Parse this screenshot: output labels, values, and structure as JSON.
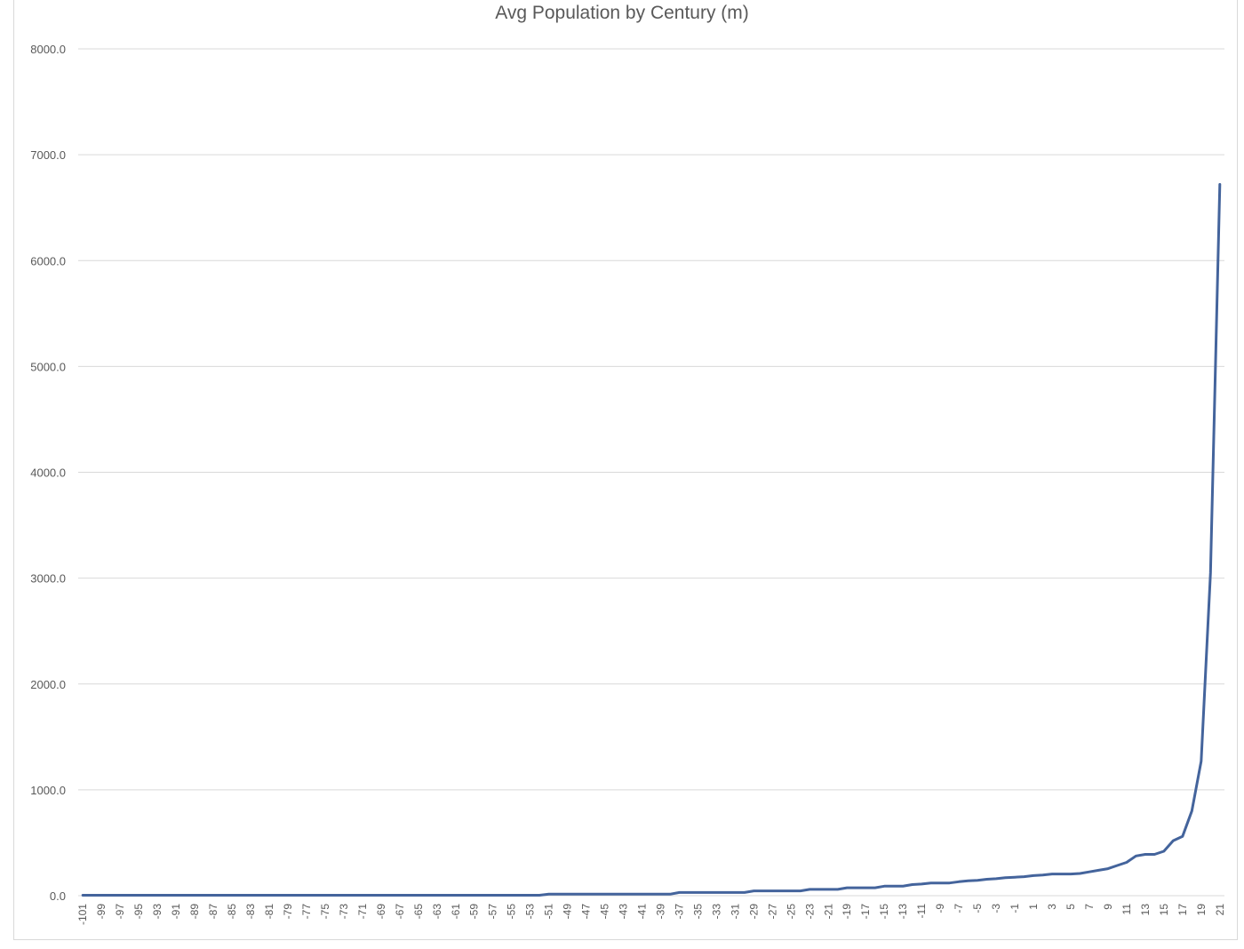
{
  "chart_data": {
    "type": "line",
    "title": "Avg Population by Century (m)",
    "xlabel": "",
    "ylabel": "",
    "ylim": [
      0,
      8000
    ],
    "y_ticks": [
      "0.0",
      "1000.0",
      "2000.0",
      "3000.0",
      "4000.0",
      "5000.0",
      "6000.0",
      "7000.0",
      "8000.0"
    ],
    "x_tick_labels": [
      "-101",
      "-99",
      "-97",
      "-95",
      "-93",
      "-91",
      "-89",
      "-87",
      "-85",
      "-83",
      "-81",
      "-79",
      "-77",
      "-75",
      "-73",
      "-71",
      "-69",
      "-67",
      "-65",
      "-63",
      "-61",
      "-59",
      "-57",
      "-55",
      "-53",
      "-51",
      "-49",
      "-47",
      "-45",
      "-43",
      "-41",
      "-39",
      "-37",
      "-35",
      "-33",
      "-31",
      "-29",
      "-27",
      "-25",
      "-23",
      "-21",
      "-19",
      "-17",
      "-15",
      "-13",
      "-11",
      "-9",
      "-7",
      "-5",
      "-3",
      "-1",
      "1",
      "3",
      "5",
      "7",
      "9",
      "11",
      "13",
      "15",
      "17",
      "19",
      "21"
    ],
    "grid": true,
    "legend": "none",
    "color": "#44649c",
    "series": [
      {
        "x_range": [
          -101,
          21
        ],
        "points": [
          [
            -101,
            4
          ],
          [
            -52,
            4
          ],
          [
            -51,
            14
          ],
          [
            -38,
            14
          ],
          [
            -37,
            30
          ],
          [
            -30,
            30
          ],
          [
            -29,
            45
          ],
          [
            -24,
            45
          ],
          [
            -23,
            60
          ],
          [
            -20,
            60
          ],
          [
            -19,
            75
          ],
          [
            -16,
            75
          ],
          [
            -15,
            90
          ],
          [
            -13,
            90
          ],
          [
            -12,
            105
          ],
          [
            -11,
            110
          ],
          [
            -10,
            120
          ],
          [
            -8,
            120
          ],
          [
            -7,
            132
          ],
          [
            -6,
            140
          ],
          [
            -5,
            145
          ],
          [
            -4,
            155
          ],
          [
            -3,
            160
          ],
          [
            -2,
            170
          ],
          [
            -1,
            175
          ],
          [
            0,
            180
          ],
          [
            1,
            190
          ],
          [
            2,
            195
          ],
          [
            3,
            205
          ],
          [
            4,
            205
          ],
          [
            5,
            205
          ],
          [
            6,
            210
          ],
          [
            7,
            225
          ],
          [
            8,
            240
          ],
          [
            9,
            255
          ],
          [
            10,
            285
          ],
          [
            11,
            315
          ],
          [
            12,
            375
          ],
          [
            13,
            390
          ],
          [
            14,
            390
          ],
          [
            15,
            420
          ],
          [
            16,
            520
          ],
          [
            17,
            560
          ],
          [
            18,
            800
          ],
          [
            19,
            1270
          ],
          [
            20,
            3050
          ],
          [
            21,
            6720
          ]
        ]
      }
    ]
  }
}
